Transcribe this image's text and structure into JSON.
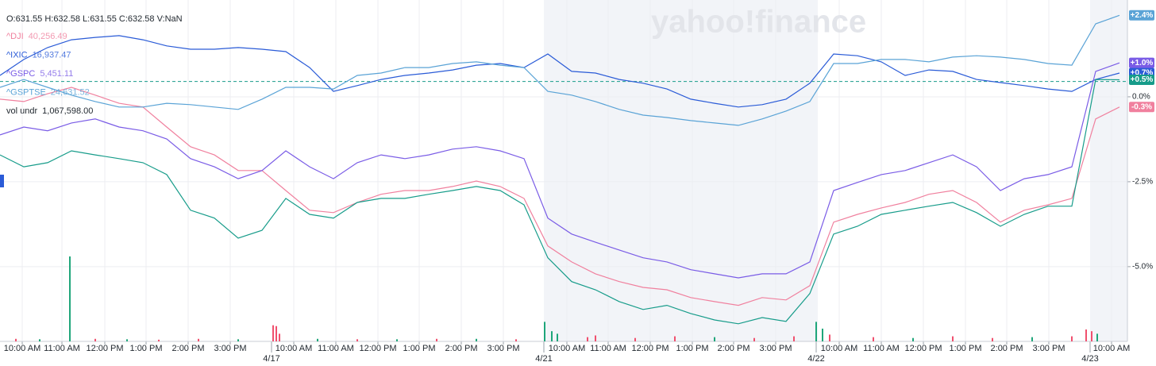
{
  "chart_data": {
    "type": "line",
    "header": "O:631.55  H:632.58  L:631.55  C:632.58  V:NaN",
    "watermark": "yahoo!finance",
    "x": [
      0,
      3,
      6,
      9,
      12,
      15,
      18,
      21,
      24,
      27,
      30,
      33,
      36,
      39,
      42,
      45,
      48,
      51,
      54,
      57,
      60,
      63,
      66,
      69,
      72,
      75,
      78,
      81,
      84,
      87,
      90,
      93,
      96,
      99,
      102,
      105,
      108,
      111,
      114,
      117,
      120,
      123,
      126,
      129,
      132,
      135,
      138,
      141
    ],
    "xlim": [
      0,
      142
    ],
    "ylim": [
      -7.2,
      2.85
    ],
    "yticks": [
      {
        "value": 0,
        "label": "0.0%"
      },
      {
        "value": -2.5,
        "label": "-2.5%"
      },
      {
        "value": -5,
        "label": "-5.0%"
      }
    ],
    "xticks": [
      {
        "value": 2.8,
        "label": "10:00 AM"
      },
      {
        "value": 7.8,
        "label": "11:00 AM"
      },
      {
        "value": 13.2,
        "label": "12:00 PM"
      },
      {
        "value": 18.4,
        "label": "1:00 PM"
      },
      {
        "value": 23.7,
        "label": "2:00 PM"
      },
      {
        "value": 29,
        "label": "3:00 PM"
      },
      {
        "value": 37,
        "label": "10:00 AM"
      },
      {
        "value": 42.3,
        "label": "11:00 AM"
      },
      {
        "value": 47.6,
        "label": "12:00 PM"
      },
      {
        "value": 52.8,
        "label": "1:00 PM"
      },
      {
        "value": 58.1,
        "label": "2:00 PM"
      },
      {
        "value": 63.4,
        "label": "3:00 PM"
      },
      {
        "value": 71.4,
        "label": "10:00 AM"
      },
      {
        "value": 76.6,
        "label": "11:00 AM"
      },
      {
        "value": 81.9,
        "label": "12:00 PM"
      },
      {
        "value": 87.2,
        "label": "1:00 PM"
      },
      {
        "value": 92.4,
        "label": "2:00 PM"
      },
      {
        "value": 97.7,
        "label": "3:00 PM"
      },
      {
        "value": 105.7,
        "label": "10:00 AM"
      },
      {
        "value": 111,
        "label": "11:00 AM"
      },
      {
        "value": 116.3,
        "label": "12:00 PM"
      },
      {
        "value": 121.6,
        "label": "1:00 PM"
      },
      {
        "value": 126.8,
        "label": "2:00 PM"
      },
      {
        "value": 132.1,
        "label": "3:00 PM"
      },
      {
        "value": 140,
        "label": "10:00 AM"
      }
    ],
    "date_ticks": [
      {
        "value": 34.2,
        "label": "4/17"
      },
      {
        "value": 68.5,
        "label": "4/21"
      },
      {
        "value": 102.8,
        "label": "4/22"
      },
      {
        "value": 137.3,
        "label": "4/23"
      }
    ],
    "shaded_ranges": [
      [
        68.5,
        103
      ],
      [
        137.3,
        142
      ]
    ],
    "price_line": 0.45,
    "grid": true,
    "series": [
      {
        "name": "^DJI",
        "legend_value": "40,256.49",
        "color": "#f0809e",
        "last_label": "-0.3%",
        "values": [
          -0.07,
          -0.14,
          0.09,
          0.28,
          0.05,
          -0.19,
          -0.3,
          -0.89,
          -1.47,
          -1.71,
          -2.17,
          -2.17,
          -2.76,
          -3.34,
          -3.41,
          -3.11,
          -2.87,
          -2.76,
          -2.76,
          -2.64,
          -2.48,
          -2.64,
          -2.99,
          -4.39,
          -4.86,
          -5.21,
          -5.44,
          -5.61,
          -5.68,
          -5.91,
          -6.03,
          -6.14,
          -5.91,
          -5.98,
          -5.56,
          -3.69,
          -3.46,
          -3.27,
          -3.11,
          -2.87,
          -2.76,
          -3.11,
          -3.69,
          -3.34,
          -3.18,
          -2.99,
          -0.65,
          -0.3
        ]
      },
      {
        "name": "^IXIC",
        "legend_value": "16,937.47",
        "color": "#2a5bd7",
        "last_label": "+0.7%",
        "values": [
          0.63,
          1.1,
          1.45,
          1.68,
          1.75,
          1.8,
          1.68,
          1.5,
          1.4,
          1.4,
          1.45,
          1.4,
          1.33,
          0.86,
          0.16,
          0.33,
          0.51,
          0.63,
          0.7,
          0.79,
          0.93,
          0.98,
          0.86,
          1.26,
          0.75,
          0.7,
          0.51,
          0.4,
          0.23,
          -0.07,
          -0.19,
          -0.3,
          -0.23,
          -0.07,
          0.4,
          1.26,
          1.21,
          1.03,
          0.63,
          0.79,
          0.75,
          0.51,
          0.42,
          0.33,
          0.23,
          0.16,
          0.51,
          0.7
        ]
      },
      {
        "name": "^GSPC",
        "legend_value": "5,451.11",
        "color": "#7a5ce6",
        "last_label": "+1.0%",
        "values": [
          -1.12,
          -0.89,
          -1,
          -0.77,
          -0.65,
          -0.89,
          -1,
          -1.24,
          -1.82,
          -2.06,
          -2.41,
          -2.17,
          -1.59,
          -2.06,
          -2.41,
          -1.94,
          -1.71,
          -1.82,
          -1.71,
          -1.54,
          -1.47,
          -1.59,
          -1.82,
          -3.57,
          -4.04,
          -4.28,
          -4.51,
          -4.74,
          -4.86,
          -5.09,
          -5.21,
          -5.33,
          -5.21,
          -5.21,
          -4.86,
          -2.76,
          -2.52,
          -2.29,
          -2.17,
          -1.94,
          -1.71,
          -2.06,
          -2.76,
          -2.41,
          -2.29,
          -2.06,
          0.75,
          1
        ]
      },
      {
        "name": "^GSPTSE",
        "legend_value": "24,631.52",
        "color": "#5aa3d6",
        "last_label": "+2.4%",
        "values": [
          0.28,
          0.51,
          0.28,
          0.05,
          -0.14,
          -0.3,
          -0.3,
          -0.19,
          -0.23,
          -0.3,
          -0.37,
          -0.07,
          0.28,
          0.28,
          0.23,
          0.63,
          0.7,
          0.86,
          0.86,
          0.98,
          1.03,
          0.93,
          0.86,
          0.16,
          0.05,
          -0.14,
          -0.37,
          -0.54,
          -0.61,
          -0.7,
          -0.77,
          -0.84,
          -0.65,
          -0.42,
          -0.14,
          0.98,
          0.98,
          1.1,
          1.1,
          1.03,
          1.17,
          1.21,
          1.17,
          1.1,
          0.98,
          0.93,
          2.15,
          2.4
        ]
      },
      {
        "color": "#179c8a",
        "last_label": "+0.5%",
        "values": [
          -1.71,
          -2.06,
          -1.94,
          -1.59,
          -1.71,
          -1.82,
          -1.94,
          -2.29,
          -3.34,
          -3.57,
          -4.16,
          -3.93,
          -2.99,
          -3.46,
          -3.57,
          -3.11,
          -2.99,
          -2.99,
          -2.87,
          -2.76,
          -2.64,
          -2.76,
          -3.18,
          -4.74,
          -5.44,
          -5.68,
          -6.03,
          -6.26,
          -6.14,
          -6.38,
          -6.57,
          -6.68,
          -6.5,
          -6.61,
          -5.79,
          -4.04,
          -3.81,
          -3.46,
          -3.34,
          -3.22,
          -3.11,
          -3.41,
          -3.81,
          -3.46,
          -3.22,
          -3.22,
          0.51,
          0.5
        ]
      }
    ],
    "volume": {
      "name": "vol undr",
      "legend_value": "1,067,598.00",
      "lim": [
        0,
        1000
      ],
      "x": [
        2,
        5,
        8.8,
        12,
        16,
        20,
        25,
        30,
        34.4,
        34.8,
        35.2,
        40,
        45,
        50,
        55,
        60,
        65,
        68.6,
        69.5,
        70.2,
        74,
        75,
        80,
        85,
        90,
        95,
        100,
        102.8,
        103.6,
        104.5,
        110,
        115,
        120,
        125,
        130,
        135,
        136.8,
        137.5,
        138.2
      ],
      "values": [
        30,
        25,
        1000,
        30,
        25,
        20,
        30,
        25,
        190,
        180,
        90,
        30,
        25,
        25,
        30,
        30,
        25,
        230,
        120,
        90,
        50,
        70,
        40,
        60,
        50,
        40,
        60,
        230,
        150,
        80,
        50,
        40,
        60,
        40,
        50,
        60,
        140,
        120,
        90
      ],
      "colors": [
        "#f0506e",
        "#1fa67a",
        "#1fa67a",
        "#f0506e",
        "#1fa67a",
        "#f0506e",
        "#f0506e",
        "#1fa67a",
        "#f0506e",
        "#f0506e",
        "#f0506e",
        "#1fa67a",
        "#f0506e",
        "#1fa67a",
        "#f0506e",
        "#1fa67a",
        "#f0506e",
        "#1fa67a",
        "#1fa67a",
        "#1fa67a",
        "#f0506e",
        "#f0506e",
        "#f0506e",
        "#f0506e",
        "#1fa67a",
        "#f0506e",
        "#f0506e",
        "#1fa67a",
        "#1fa67a",
        "#f0506e",
        "#f0506e",
        "#1fa67a",
        "#f0506e",
        "#f0506e",
        "#1fa67a",
        "#f0506e",
        "#f0506e",
        "#f0506e",
        "#1fa67a"
      ]
    }
  }
}
